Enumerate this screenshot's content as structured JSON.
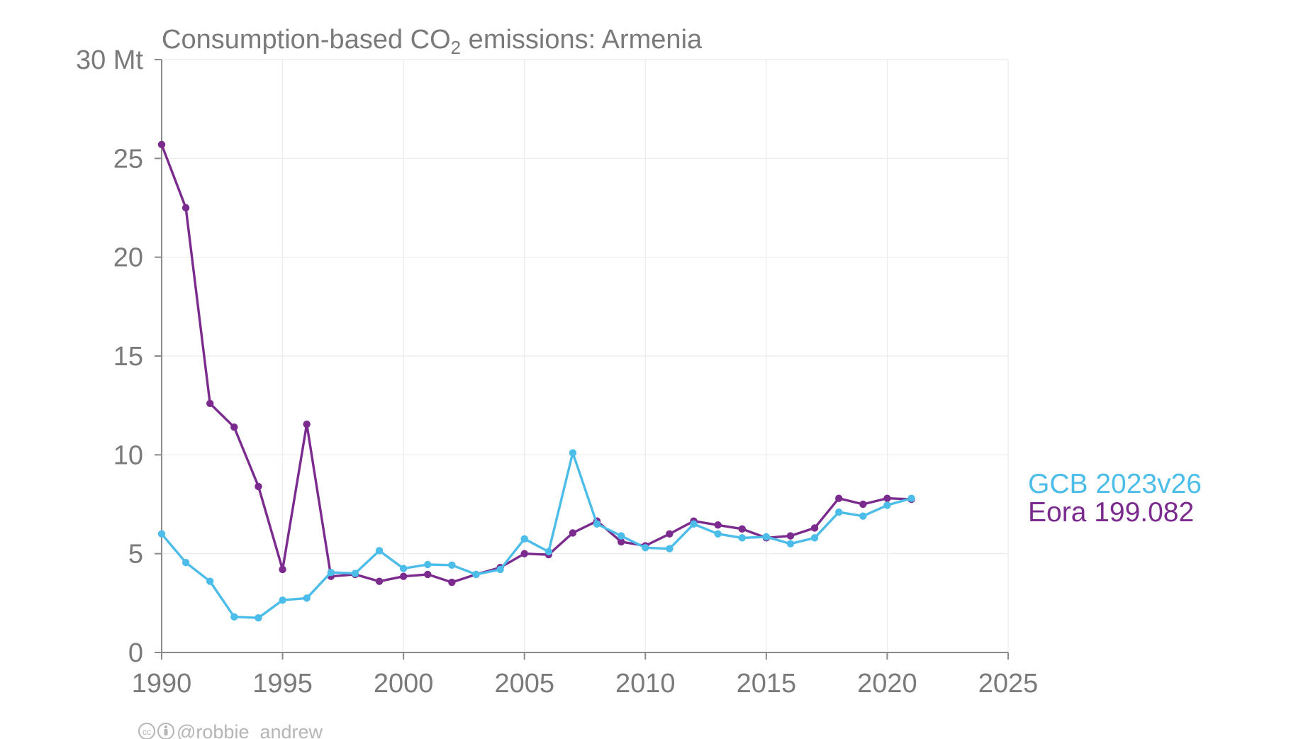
{
  "chart_data": {
    "type": "line",
    "title": "Consumption-based CO₂ emissions: Armenia",
    "y_unit": "Mt",
    "xlim": [
      1990,
      2025
    ],
    "ylim": [
      0,
      30
    ],
    "x_ticks": [
      1990,
      1995,
      2000,
      2005,
      2010,
      2015,
      2020,
      2025
    ],
    "y_ticks": [
      0,
      5,
      10,
      15,
      20,
      25,
      30
    ],
    "y_tick_labels": [
      "0",
      "5",
      "10",
      "15",
      "20",
      "25",
      "30 Mt"
    ],
    "grid": true,
    "legend_placement": "right",
    "x": [
      1990,
      1991,
      1992,
      1993,
      1994,
      1995,
      1996,
      1997,
      1998,
      1999,
      2000,
      2001,
      2002,
      2003,
      2004,
      2005,
      2006,
      2007,
      2008,
      2009,
      2010,
      2011,
      2012,
      2013,
      2014,
      2015,
      2016,
      2017,
      2018,
      2019,
      2020,
      2021
    ],
    "series": [
      {
        "name": "Eora 199.082",
        "color": "#7b2a8e",
        "values": [
          25.7,
          22.5,
          12.6,
          11.4,
          8.4,
          4.2,
          11.55,
          3.85,
          3.95,
          3.6,
          3.85,
          3.95,
          3.55,
          3.95,
          4.3,
          5.0,
          4.95,
          6.05,
          6.65,
          5.6,
          5.4,
          6.0,
          6.65,
          6.45,
          6.25,
          5.8,
          5.9,
          6.3,
          7.8,
          7.5,
          7.8,
          7.75
        ]
      },
      {
        "name": "GCB 2023v26",
        "color": "#4cbde9",
        "values": [
          6.0,
          4.55,
          3.6,
          1.8,
          1.75,
          2.65,
          2.75,
          4.05,
          4.0,
          5.15,
          4.25,
          4.45,
          4.42,
          3.95,
          4.2,
          5.75,
          5.1,
          10.1,
          6.5,
          5.9,
          5.3,
          5.25,
          6.5,
          6.0,
          5.8,
          5.85,
          5.5,
          5.8,
          7.1,
          6.9,
          7.45,
          7.8
        ]
      }
    ]
  },
  "credit": {
    "handle": "@robbie_andrew",
    "icon_names": [
      "cc-icon",
      "attribution-icon"
    ]
  }
}
